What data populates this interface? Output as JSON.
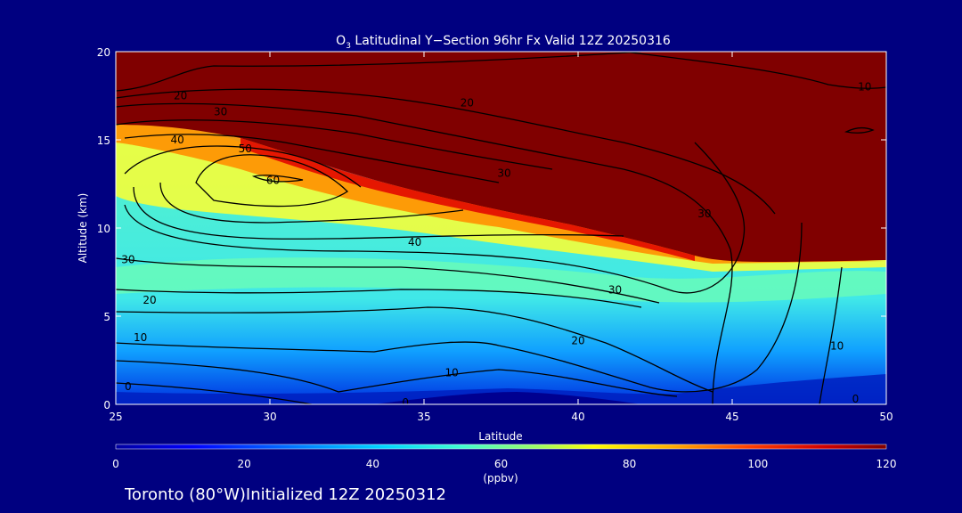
{
  "chart_data": {
    "type": "heatmap",
    "title_main": "O",
    "title_sub": "3",
    "title_rest": " Latitudinal Y−Section 96hr  Fx Valid 12Z 20250316",
    "xlabel": "Latitude",
    "ylabel": "Altitude (km)",
    "xlim": [
      25,
      50
    ],
    "ylim": [
      0,
      20
    ],
    "x_ticks": [
      "25",
      "30",
      "35",
      "40",
      "45",
      "50"
    ],
    "y_ticks": [
      "0",
      "5",
      "10",
      "15",
      "20"
    ],
    "colorbar": {
      "range": [
        0,
        120
      ],
      "ticks": [
        "0",
        "20",
        "40",
        "60",
        "80",
        "100",
        "120"
      ],
      "unit_label": "(ppbv)"
    },
    "footer": "Toronto (80°W)Initialized 12Z 20250312",
    "contour_labels": [
      {
        "text": "20",
        "lat": 27.1,
        "alt": 17.5
      },
      {
        "text": "20",
        "lat": 36.4,
        "alt": 17.1
      },
      {
        "text": "30",
        "lat": 28.4,
        "alt": 16.6
      },
      {
        "text": "40",
        "lat": 27.0,
        "alt": 15.0
      },
      {
        "text": "50",
        "lat": 29.2,
        "alt": 14.5
      },
      {
        "text": "60",
        "lat": 30.1,
        "alt": 12.7
      },
      {
        "text": "30",
        "lat": 37.6,
        "alt": 13.1
      },
      {
        "text": "30",
        "lat": 44.1,
        "alt": 10.8
      },
      {
        "text": "10",
        "lat": 49.3,
        "alt": 18.0
      },
      {
        "text": "40",
        "lat": 34.7,
        "alt": 9.2
      },
      {
        "text": "30",
        "lat": 25.4,
        "alt": 8.2
      },
      {
        "text": "30",
        "lat": 41.2,
        "alt": 6.5
      },
      {
        "text": "20",
        "lat": 26.1,
        "alt": 5.9
      },
      {
        "text": "10",
        "lat": 25.8,
        "alt": 3.8
      },
      {
        "text": "20",
        "lat": 40.0,
        "alt": 3.6
      },
      {
        "text": "10",
        "lat": 48.4,
        "alt": 3.3
      },
      {
        "text": "10",
        "lat": 35.9,
        "alt": 1.8
      },
      {
        "text": "0",
        "lat": 25.4,
        "alt": 1.0
      },
      {
        "text": "0",
        "lat": 34.4,
        "alt": 0.1
      },
      {
        "text": "0",
        "lat": 49.0,
        "alt": 0.3
      }
    ],
    "tropopause_lower_km": [
      [
        25,
        16.3
      ],
      [
        27,
        15.9
      ],
      [
        29,
        15.3
      ],
      [
        31,
        14.3
      ],
      [
        33,
        13.0
      ],
      [
        35,
        11.9
      ],
      [
        37,
        10.9
      ],
      [
        39,
        10.1
      ],
      [
        41,
        9.5
      ],
      [
        43,
        8.9
      ],
      [
        44,
        8.3
      ],
      [
        45,
        8.1
      ],
      [
        46,
        8.0
      ],
      [
        48,
        8.0
      ],
      [
        50,
        8.1
      ]
    ],
    "tropopause_upper_km": [
      [
        25,
        18.0
      ],
      [
        50,
        18.0
      ]
    ]
  }
}
